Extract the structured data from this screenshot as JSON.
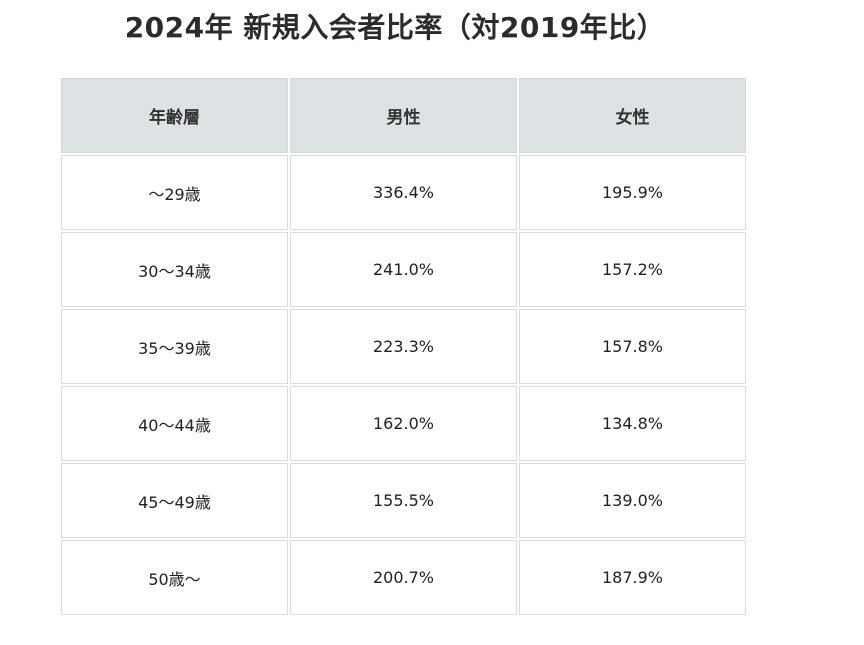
{
  "title": "2024年 新規入会者比率（対2019年比）",
  "table": {
    "headers": [
      "年齢層",
      "男性",
      "女性"
    ],
    "rows": [
      [
        "～29歳",
        "336.4%",
        "195.9%"
      ],
      [
        "30～34歳",
        "241.0%",
        "157.2%"
      ],
      [
        "35～39歳",
        "223.3%",
        "157.8%"
      ],
      [
        "40～44歳",
        "162.0%",
        "134.8%"
      ],
      [
        "45～49歳",
        "155.5%",
        "139.0%"
      ],
      [
        "50歳～",
        "200.7%",
        "187.9%"
      ]
    ]
  },
  "colors": {
    "header_bg": "#dde2e5",
    "cell_border": "#dcdcdc",
    "text": "#222222"
  }
}
